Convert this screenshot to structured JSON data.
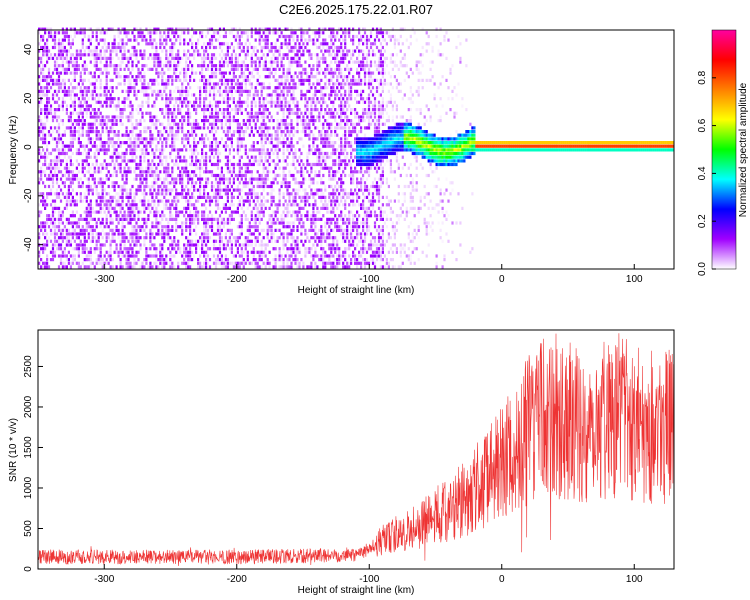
{
  "title": "C2E6.2025.175.22.01.R07",
  "chart_data": [
    {
      "type": "heatmap",
      "xlabel": "Height of straight line (km)",
      "ylabel": "Frequency (Hz)",
      "xlim": [
        -350,
        130
      ],
      "ylim": [
        -50,
        48
      ],
      "xticks": [
        -300,
        -200,
        -100,
        0,
        100
      ],
      "yticks": [
        -40,
        -20,
        0,
        20,
        40
      ],
      "colorbar": {
        "label": "Normalized spectral amplitude",
        "range": [
          0,
          1
        ],
        "ticks": [
          "0.0",
          "0.2",
          "0.4",
          "0.6",
          "0.8"
        ],
        "colormap": [
          "#ffffff",
          "#a000ff",
          "#0000ff",
          "#00ffff",
          "#00ff00",
          "#ffff00",
          "#ff8000",
          "#ff0000",
          "#ff00a0"
        ]
      },
      "features": {
        "noise_region_x": [
          -350,
          -90
        ],
        "transition_region_x": [
          -90,
          -20
        ],
        "signal_line_frequency_hz": 0,
        "signal_line_x": [
          -110,
          130
        ]
      }
    },
    {
      "type": "line",
      "xlabel": "Height of straight line (km)",
      "ylabel": "SNR (10 * v/v)",
      "xlim": [
        -350,
        130
      ],
      "ylim": [
        0,
        2950
      ],
      "xticks": [
        -300,
        -200,
        -100,
        0,
        100
      ],
      "yticks": [
        0,
        500,
        1000,
        1500,
        2000,
        2500
      ],
      "series": [
        {
          "color": "#ee3333",
          "x": [
            -350,
            -300,
            -250,
            -200,
            -150,
            -110,
            -100,
            -90,
            -80,
            -70,
            -60,
            -50,
            -40,
            -30,
            -20,
            -10,
            0,
            10,
            20,
            30,
            40,
            50,
            60,
            70,
            80,
            90,
            100,
            110,
            120,
            130
          ],
          "y": [
            150,
            150,
            150,
            150,
            160,
            180,
            250,
            350,
            420,
            480,
            560,
            650,
            740,
            850,
            1000,
            1150,
            1300,
            1500,
            1700,
            1850,
            1900,
            1850,
            1700,
            1800,
            1900,
            1950,
            1850,
            1800,
            1750,
            1800
          ]
        }
      ]
    }
  ]
}
